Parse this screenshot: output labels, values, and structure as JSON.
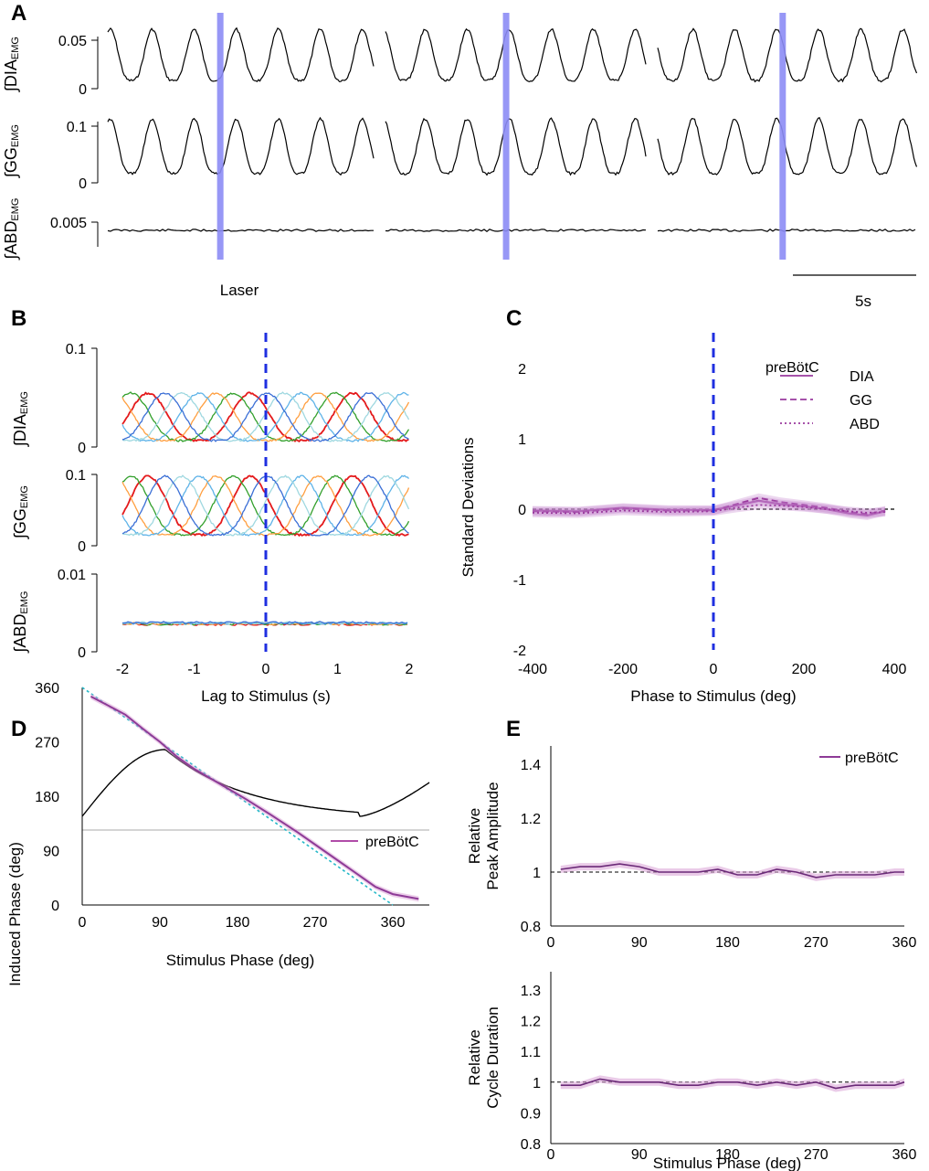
{
  "chart_data": [
    {
      "panel": "A",
      "type": "line",
      "title": "",
      "rows": [
        {
          "label": "∫DIA",
          "sub": "EMG",
          "yticks": [
            "0.05",
            "0"
          ]
        },
        {
          "label": "∫GG",
          "sub": "EMG",
          "yticks": [
            "0.1",
            "0"
          ]
        },
        {
          "label": "∫ABD",
          "sub": "EMG",
          "yticks": [
            "0.005"
          ]
        }
      ],
      "laser_label": "Laser",
      "scale_bar_label": "5s",
      "laser_positions_fraction": [
        0.42,
        0.46,
        0.48
      ]
    },
    {
      "panel": "B",
      "type": "line",
      "xlabel": "Lag to Stimulus (s)",
      "xlim": [
        -2,
        2
      ],
      "xticks": [
        "-2",
        "-1",
        "0",
        "1",
        "2"
      ],
      "rows": [
        {
          "label": "∫DIA",
          "sub": "EMG",
          "yticks": [
            "0.1",
            "0"
          ],
          "ylim": [
            0,
            0.1
          ]
        },
        {
          "label": "∫GG",
          "sub": "EMG",
          "yticks": [
            "0.1",
            "0"
          ],
          "ylim": [
            0,
            0.1
          ]
        },
        {
          "label": "∫ABD",
          "sub": "EMG",
          "yticks": [
            "0.01",
            "0"
          ],
          "ylim": [
            0,
            0.01
          ]
        }
      ],
      "series_colors": [
        "#e41a1c",
        "#33a02c",
        "#ff9f40",
        "#5fb3e8",
        "#9fd8e0",
        "#3b6fd6"
      ]
    },
    {
      "panel": "C",
      "type": "line",
      "xlabel": "Phase to Stimulus (deg)",
      "ylabel": "Standard Deviations",
      "xlim": [
        -400,
        400
      ],
      "ylim": [
        -2,
        2
      ],
      "xticks": [
        "-400",
        "-200",
        "0",
        "200",
        "400"
      ],
      "yticks": [
        "2",
        "1",
        "0",
        "-1",
        "-2"
      ],
      "legend_title": "preBötC",
      "legend": [
        "DIA",
        "GG",
        "ABD"
      ],
      "series": [
        {
          "name": "DIA",
          "x": [
            -400,
            -300,
            -200,
            -100,
            0,
            50,
            100,
            150,
            200,
            250,
            300,
            340,
            380
          ],
          "values": [
            -0.02,
            -0.03,
            0.02,
            -0.01,
            -0.01,
            0.05,
            0.12,
            0.07,
            0.04,
            0.0,
            -0.06,
            -0.09,
            -0.03
          ]
        },
        {
          "name": "GG",
          "x": [
            -400,
            -300,
            -200,
            -100,
            0,
            50,
            100,
            150,
            200,
            250,
            300,
            340,
            380
          ],
          "values": [
            -0.03,
            -0.04,
            0.01,
            -0.02,
            -0.02,
            0.07,
            0.16,
            0.1,
            0.06,
            0.02,
            -0.04,
            -0.07,
            -0.02
          ]
        },
        {
          "name": "ABD",
          "x": [
            -400,
            -300,
            -200,
            -100,
            0,
            50,
            100,
            150,
            200,
            250,
            300,
            340,
            380
          ],
          "values": [
            -0.05,
            -0.06,
            -0.02,
            -0.04,
            -0.03,
            0.02,
            0.06,
            0.05,
            0.03,
            0.0,
            -0.03,
            -0.05,
            -0.04
          ]
        }
      ]
    },
    {
      "panel": "D",
      "type": "line",
      "xlabel": "Stimulus Phase (deg)",
      "ylabel": "Induced Phase (deg)",
      "xlim": [
        0,
        400
      ],
      "ylim": [
        0,
        390
      ],
      "xticks": [
        "0",
        "90",
        "180",
        "270",
        "360"
      ],
      "yticks": [
        "360",
        "270",
        "180",
        "90",
        "0"
      ],
      "legend": [
        "preBötC"
      ],
      "series": [
        {
          "name": "preBötC",
          "x": [
            10,
            30,
            50,
            70,
            90,
            110,
            130,
            160,
            190,
            220,
            250,
            280,
            310,
            340,
            360,
            390
          ],
          "values": [
            345,
            330,
            315,
            292,
            270,
            245,
            225,
            200,
            175,
            148,
            120,
            90,
            60,
            30,
            18,
            10
          ]
        },
        {
          "name": "identity",
          "x": [
            0,
            360
          ],
          "values": [
            360,
            0
          ]
        }
      ],
      "cycle_trace": "respiratory waveform above panel"
    },
    {
      "panel": "E",
      "type": "line",
      "xlabel": "Stimulus Phase (deg)",
      "xlim": [
        0,
        360
      ],
      "xticks": [
        "0",
        "90",
        "180",
        "270",
        "360"
      ],
      "legend": [
        "preBötC"
      ],
      "subplots": [
        {
          "ylabel": [
            "Relative",
            "Peak Amplitude"
          ],
          "ylim": [
            0.8,
            1.5
          ],
          "yticks": [
            "1.4",
            "1.2",
            "1",
            "0.8"
          ],
          "x": [
            10,
            30,
            50,
            70,
            90,
            110,
            130,
            150,
            170,
            190,
            210,
            230,
            250,
            270,
            290,
            310,
            330,
            350,
            360
          ],
          "values": [
            1.01,
            1.02,
            1.02,
            1.03,
            1.02,
            1.0,
            1.0,
            1.0,
            1.01,
            0.99,
            0.99,
            1.01,
            1.0,
            0.98,
            0.99,
            0.99,
            0.99,
            1.0,
            1.0
          ]
        },
        {
          "ylabel": [
            "Relative",
            "Cycle Duration"
          ],
          "ylim": [
            0.8,
            1.3
          ],
          "yticks": [
            "1.3",
            "1.2",
            "1.1",
            "1",
            "0.9",
            "0.8"
          ],
          "x": [
            10,
            30,
            50,
            70,
            90,
            110,
            130,
            150,
            170,
            190,
            210,
            230,
            250,
            270,
            290,
            310,
            330,
            350,
            360
          ],
          "values": [
            0.99,
            0.99,
            1.01,
            1.0,
            1.0,
            1.0,
            0.99,
            0.99,
            1.0,
            1.0,
            0.99,
            1.0,
            0.99,
            1.0,
            0.98,
            0.99,
            0.99,
            0.99,
            1.0
          ]
        }
      ]
    }
  ]
}
